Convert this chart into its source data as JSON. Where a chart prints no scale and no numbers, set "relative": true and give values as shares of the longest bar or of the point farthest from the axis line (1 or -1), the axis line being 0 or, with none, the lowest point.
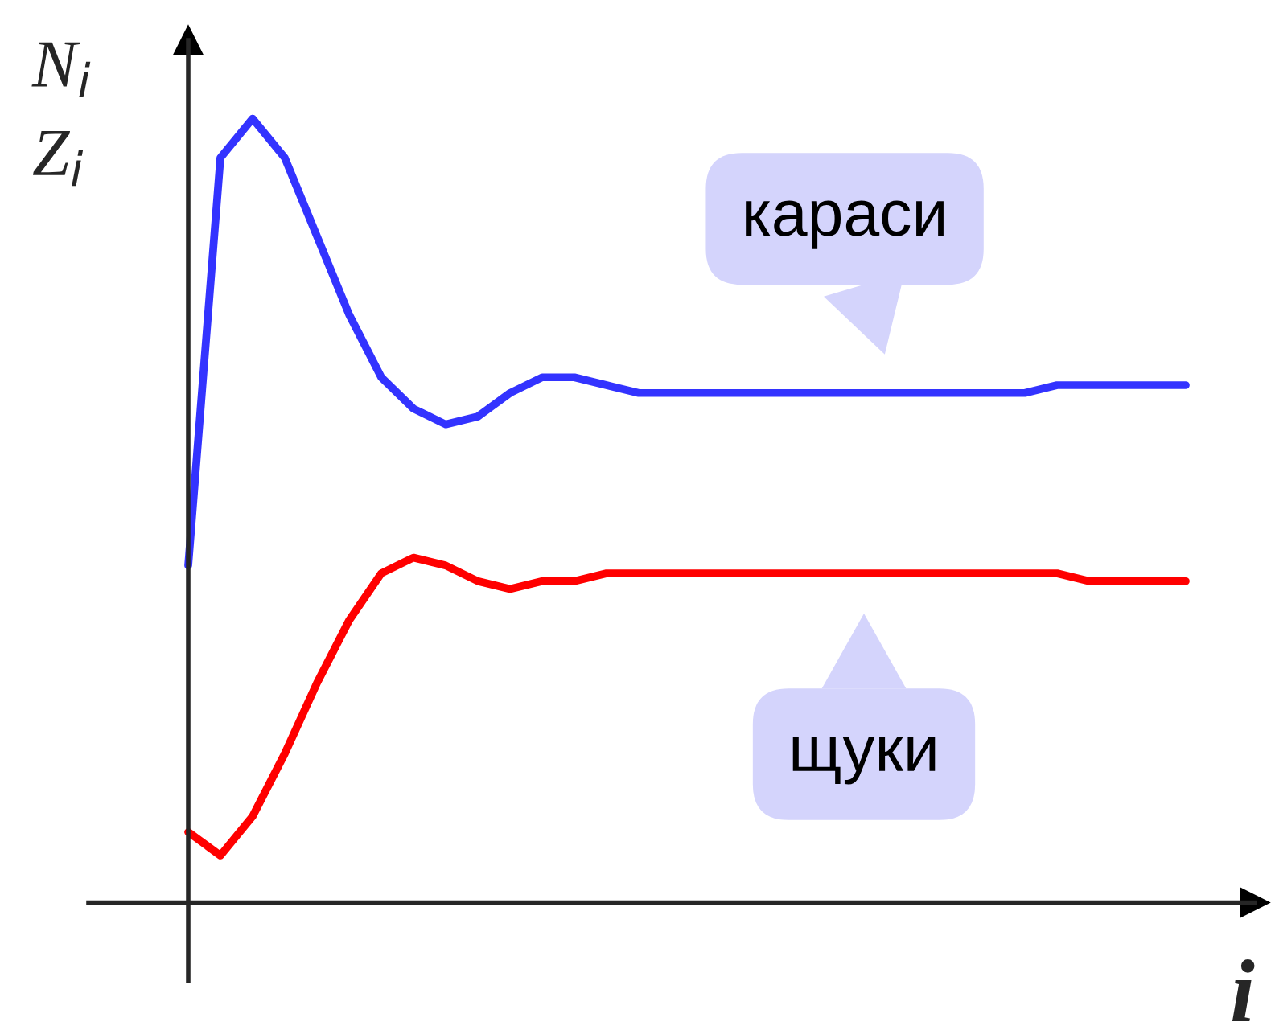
{
  "chart_data": {
    "type": "line",
    "relative": true,
    "xlabel": "i",
    "ylabel": "N$_{i}$\nZ$_{i}$",
    "legend": false,
    "marker": "none",
    "line_style": "solid",
    "categories": [
      null,
      null,
      null,
      null,
      null,
      null,
      null,
      null,
      null,
      null,
      null,
      null,
      null,
      null,
      null,
      null,
      null,
      null,
      null,
      null,
      null,
      null,
      null,
      null,
      null,
      null,
      null,
      null,
      null,
      null,
      null,
      null
    ],
    "series": [
      {
        "name": "караси",
        "color": "#3333ff",
        "values": [
          0.43,
          0.95,
          1.0,
          0.95,
          0.85,
          0.75,
          0.67,
          0.63,
          0.61,
          0.62,
          0.65,
          0.67,
          0.67,
          0.66,
          0.65,
          0.65,
          0.65,
          0.65,
          0.65,
          0.65,
          0.65,
          0.65,
          0.65,
          0.65,
          0.65,
          0.65,
          0.65,
          0.66,
          0.66,
          0.66,
          0.66,
          0.66
        ]
      },
      {
        "name": "щуки",
        "color": "#ff0000",
        "values": [
          0.09,
          0.06,
          0.11,
          0.19,
          0.28,
          0.36,
          0.42,
          0.44,
          0.43,
          0.41,
          0.4,
          0.41,
          0.41,
          0.42,
          0.42,
          0.42,
          0.42,
          0.42,
          0.42,
          0.42,
          0.42,
          0.42,
          0.42,
          0.42,
          0.42,
          0.42,
          0.42,
          0.42,
          0.41,
          0.41,
          0.41,
          0.41
        ]
      }
    ]
  }
}
